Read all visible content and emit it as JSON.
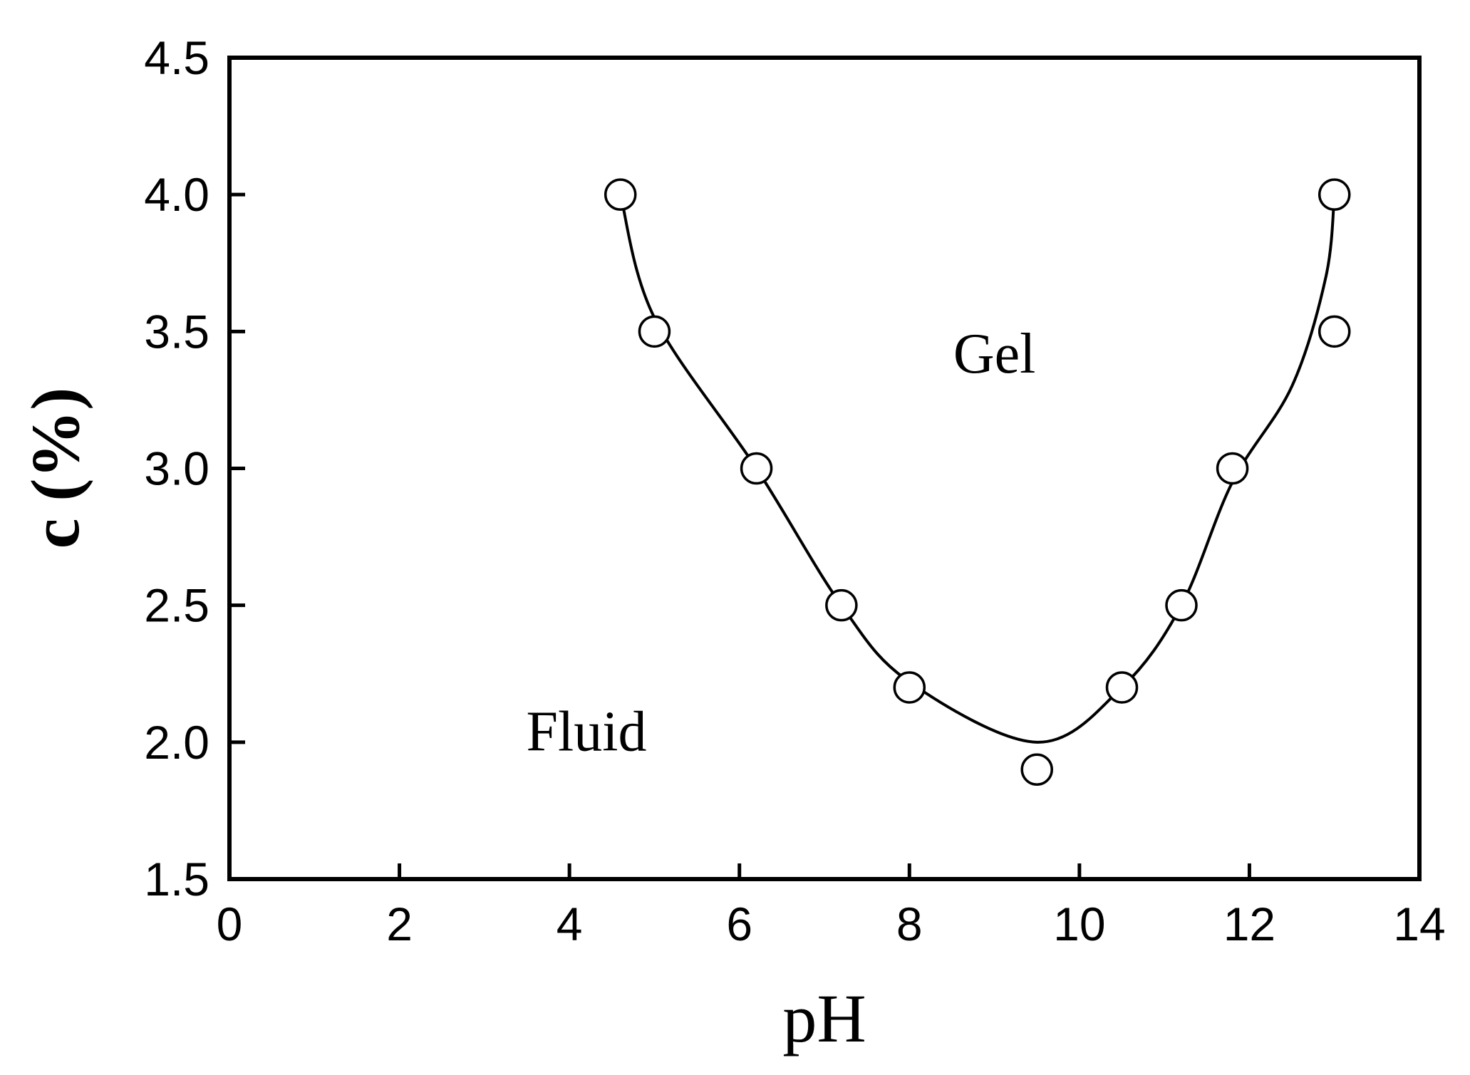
{
  "chart_data": {
    "type": "scatter",
    "title": "",
    "xlabel": "pH",
    "ylabel": "c (%)",
    "xlim": [
      0,
      14
    ],
    "ylim": [
      1.5,
      4.5
    ],
    "x_ticks": [
      0,
      2,
      4,
      6,
      8,
      10,
      12,
      14
    ],
    "y_ticks": [
      1.5,
      2.0,
      2.5,
      3.0,
      3.5,
      4.0,
      4.5
    ],
    "x_tick_labels": [
      "0",
      "2",
      "4",
      "6",
      "8",
      "10",
      "12",
      "14"
    ],
    "y_tick_labels": [
      "1.5",
      "2.0",
      "2.5",
      "3.0",
      "3.5",
      "4.0",
      "4.5"
    ],
    "grid": false,
    "legend": "none",
    "series": [
      {
        "marker": "open-circle",
        "x": [
          4.6,
          5.0,
          6.2,
          7.2,
          8.0,
          9.5,
          10.5,
          11.2,
          11.8,
          13.0,
          13.0
        ],
        "y": [
          4.0,
          3.5,
          3.0,
          2.5,
          2.2,
          1.9,
          2.2,
          2.5,
          3.0,
          3.5,
          4.0
        ]
      }
    ],
    "fit_curve": {
      "x": [
        4.6,
        5.0,
        6.2,
        7.2,
        8.0,
        9.5,
        10.5,
        11.2,
        11.8,
        12.5,
        12.9,
        13.0
      ],
      "y": [
        4.0,
        3.55,
        3.0,
        2.5,
        2.22,
        2.0,
        2.2,
        2.5,
        2.95,
        3.3,
        3.7,
        4.0
      ]
    },
    "annotations": [
      {
        "text": "Gel",
        "x": 9.0,
        "y": 3.35
      },
      {
        "text": "Fluid",
        "x": 4.2,
        "y": 1.97
      }
    ]
  }
}
